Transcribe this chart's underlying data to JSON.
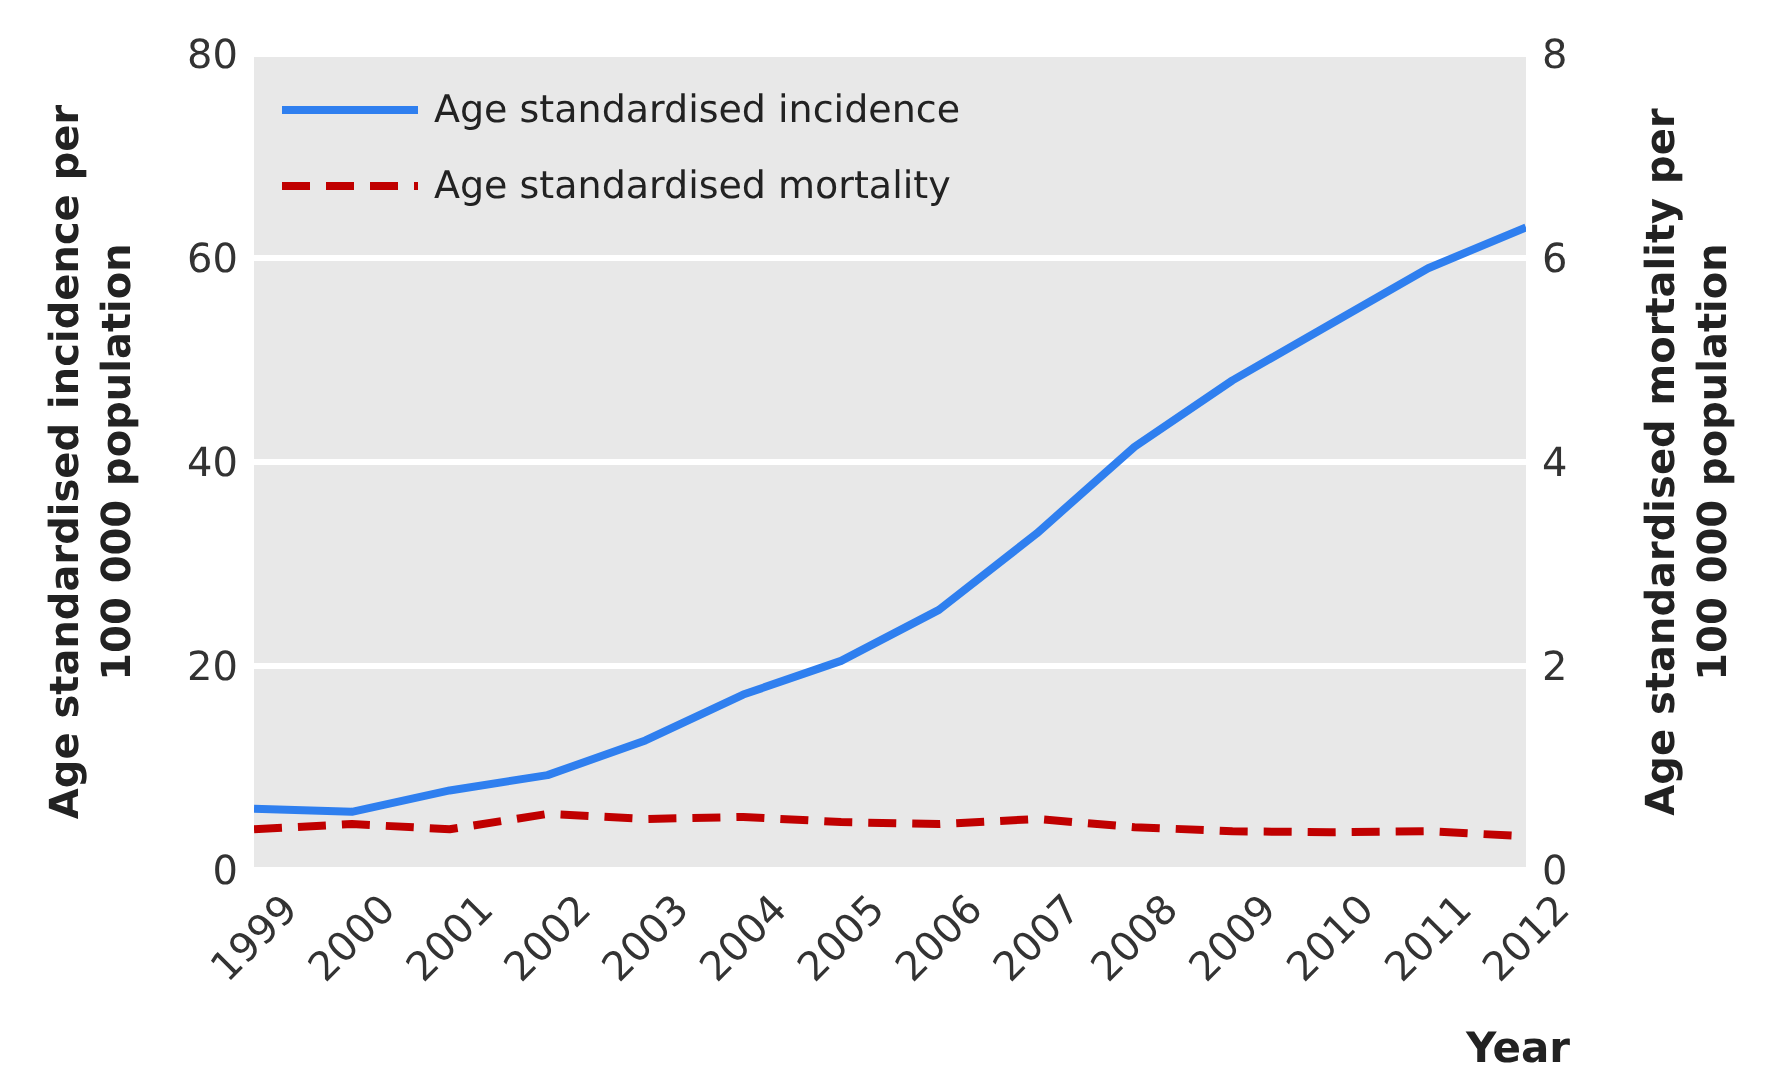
{
  "chart_data": {
    "type": "line",
    "xlabel": "Year",
    "ylabel": "Age standardised incidence per 100 000 population",
    "y2label": "Age standardised mortality per 100 000 population",
    "x": [
      1999,
      2000,
      2001,
      2002,
      2003,
      2004,
      2005,
      2006,
      2007,
      2008,
      2009,
      2010,
      2011,
      2012
    ],
    "series": [
      {
        "name": "Age standardised incidence",
        "color": "#2f7fef",
        "line_style": "solid",
        "values": [
          6,
          5.7,
          7.8,
          9.3,
          12.7,
          17.2,
          20.5,
          25.5,
          33,
          41.5,
          48,
          53.5,
          59,
          63
        ]
      },
      {
        "name": "Age standardised mortality",
        "color": "#c00000",
        "line_style": "dashed",
        "axis": "y2",
        "values": [
          0.4,
          0.45,
          0.4,
          0.55,
          0.5,
          0.52,
          0.47,
          0.45,
          0.5,
          0.42,
          0.38,
          0.37,
          0.38,
          0.33
        ]
      }
    ],
    "xlim": [
      1999,
      2012
    ],
    "xticks": [
      1999,
      2000,
      2001,
      2002,
      2003,
      2004,
      2005,
      2006,
      2007,
      2008,
      2009,
      2010,
      2011,
      2012
    ],
    "ylim": [
      0,
      80
    ],
    "yticks": [
      0,
      20,
      40,
      60,
      80
    ],
    "y2lim": [
      0,
      8
    ],
    "y2ticks": [
      0,
      2,
      4,
      6,
      8
    ],
    "grid": "y",
    "legend": "top left",
    "marker": "none"
  }
}
